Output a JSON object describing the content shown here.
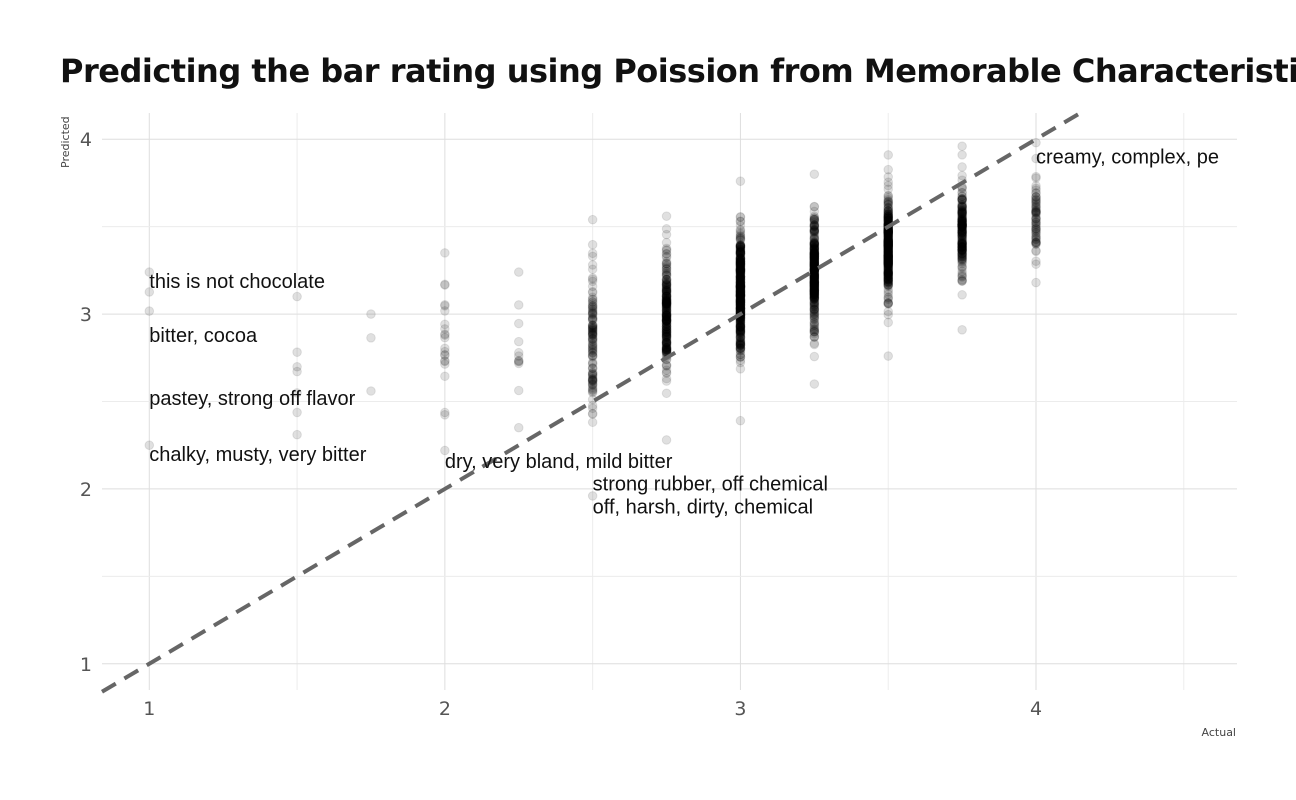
{
  "chart_data": {
    "type": "scatter",
    "title": "Predicting the bar rating using Poission from Memorable Characteristics",
    "xlabel": "Actual",
    "ylabel": "Predicted",
    "xlim": [
      0.84,
      4.68
    ],
    "ylim": [
      0.85,
      4.15
    ],
    "x_ticks": [
      "1",
      "2",
      "3",
      "4"
    ],
    "y_ticks": [
      "1",
      "2",
      "3",
      "4"
    ],
    "grid": true,
    "reference_line": {
      "style": "dashed",
      "slope": 1,
      "intercept": 0,
      "color": "#666666"
    },
    "point_color": "#000000",
    "point_alpha": 0.12,
    "columns": [
      {
        "x": 1.0,
        "ymin": 2.25,
        "ymax": 3.24,
        "n": 4,
        "mean": 2.75,
        "sd": 0.4
      },
      {
        "x": 1.5,
        "ymin": 2.31,
        "ymax": 3.1,
        "n": 7,
        "mean": 2.6,
        "sd": 0.25
      },
      {
        "x": 1.75,
        "ymin": 2.56,
        "ymax": 3.0,
        "n": 3,
        "mean": 2.8,
        "sd": 0.2
      },
      {
        "x": 2.0,
        "ymin": 2.22,
        "ymax": 3.35,
        "n": 22,
        "mean": 2.85,
        "sd": 0.3
      },
      {
        "x": 2.25,
        "ymin": 2.35,
        "ymax": 3.24,
        "n": 12,
        "mean": 2.75,
        "sd": 0.25
      },
      {
        "x": 2.5,
        "ymin": 1.96,
        "ymax": 3.54,
        "n": 120,
        "mean": 2.85,
        "sd": 0.28
      },
      {
        "x": 2.75,
        "ymin": 2.28,
        "ymax": 3.56,
        "n": 250,
        "mean": 3.0,
        "sd": 0.25
      },
      {
        "x": 3.0,
        "ymin": 2.39,
        "ymax": 3.76,
        "n": 450,
        "mean": 3.12,
        "sd": 0.24
      },
      {
        "x": 3.25,
        "ymin": 2.6,
        "ymax": 3.8,
        "n": 350,
        "mean": 3.25,
        "sd": 0.22
      },
      {
        "x": 3.5,
        "ymin": 2.76,
        "ymax": 3.91,
        "n": 380,
        "mean": 3.38,
        "sd": 0.2
      },
      {
        "x": 3.75,
        "ymin": 2.91,
        "ymax": 3.96,
        "n": 200,
        "mean": 3.48,
        "sd": 0.2
      },
      {
        "x": 4.0,
        "ymin": 3.18,
        "ymax": 3.98,
        "n": 70,
        "mean": 3.55,
        "sd": 0.18
      }
    ],
    "annotations": [
      {
        "text": "this is not chocolate",
        "x": 1.0,
        "y": 3.19
      },
      {
        "text": "bitter, cocoa",
        "x": 1.0,
        "y": 2.88
      },
      {
        "text": "pastey, strong off flavor",
        "x": 1.0,
        "y": 2.52
      },
      {
        "text": "chalky, musty, very bitter",
        "x": 1.0,
        "y": 2.2
      },
      {
        "text": "dry, very bland, mild bitter",
        "x": 2.0,
        "y": 2.16
      },
      {
        "text": "strong rubber, off chemical",
        "x": 2.5,
        "y": 2.03
      },
      {
        "text": "off, harsh, dirty, chemical",
        "x": 2.5,
        "y": 1.9
      },
      {
        "text": "creamy, complex, pe",
        "x": 4.0,
        "y": 3.9
      }
    ]
  }
}
